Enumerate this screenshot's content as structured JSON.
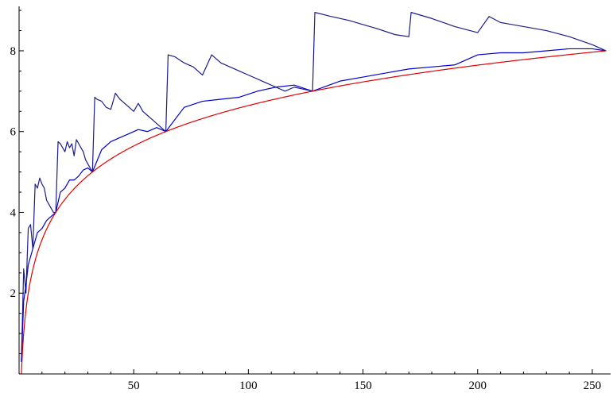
{
  "chart_data": {
    "type": "line",
    "title": "",
    "xlabel": "",
    "ylabel": "",
    "xlim": [
      0,
      258
    ],
    "ylim": [
      0,
      9.1
    ],
    "x_ticks": [
      50,
      100,
      150,
      200,
      250
    ],
    "y_ticks": [
      2,
      4,
      6,
      8
    ],
    "x_tick_labels": [
      "50",
      "100",
      "150",
      "200",
      "250"
    ],
    "y_tick_labels": [
      "2",
      "4",
      "6",
      "8"
    ],
    "grid": false,
    "legend": "none",
    "series": [
      {
        "key": "upper",
        "color": "#1c1c8c",
        "x": [
          1,
          2,
          3,
          4,
          5,
          6,
          7,
          8,
          9,
          10,
          11,
          12,
          13,
          14,
          15,
          16,
          17,
          18,
          19,
          20,
          21,
          22,
          23,
          24,
          25,
          26,
          27,
          28,
          29,
          30,
          31,
          32,
          33,
          34,
          36,
          38,
          40,
          42,
          44,
          46,
          48,
          50,
          52,
          54,
          56,
          58,
          60,
          62,
          64,
          65,
          68,
          72,
          76,
          80,
          84,
          88,
          92,
          96,
          100,
          104,
          108,
          112,
          116,
          120,
          124,
          128,
          129,
          136,
          144,
          150,
          156,
          164,
          170,
          171,
          180,
          190,
          200,
          205,
          210,
          220,
          230,
          240,
          250,
          256
        ],
        "values": [
          0.3,
          2.6,
          2.0,
          3.6,
          3.7,
          3.1,
          4.7,
          4.6,
          4.85,
          4.7,
          4.6,
          4.3,
          4.2,
          4.1,
          4.0,
          4.0,
          5.75,
          5.7,
          5.6,
          5.5,
          5.75,
          5.6,
          5.7,
          5.4,
          5.8,
          5.7,
          5.6,
          5.5,
          5.3,
          5.2,
          5.1,
          5.0,
          6.85,
          6.8,
          6.75,
          6.6,
          6.55,
          6.95,
          6.8,
          6.7,
          6.6,
          6.5,
          6.7,
          6.5,
          6.4,
          6.3,
          6.2,
          6.1,
          6.0,
          7.9,
          7.85,
          7.7,
          7.6,
          7.4,
          7.9,
          7.7,
          7.6,
          7.5,
          7.4,
          7.3,
          7.2,
          7.1,
          7.0,
          7.1,
          7.05,
          7.0,
          8.95,
          8.85,
          8.75,
          8.65,
          8.55,
          8.4,
          8.35,
          8.95,
          8.8,
          8.6,
          8.45,
          8.85,
          8.7,
          8.6,
          8.5,
          8.35,
          8.15,
          8.0
        ]
      },
      {
        "key": "middle",
        "color": "#0000d0",
        "x": [
          1,
          2,
          3,
          4,
          6,
          8,
          10,
          12,
          14,
          16,
          18,
          20,
          22,
          24,
          26,
          28,
          30,
          32,
          36,
          40,
          44,
          48,
          52,
          56,
          60,
          64,
          72,
          80,
          88,
          96,
          104,
          112,
          120,
          128,
          140,
          150,
          160,
          170,
          180,
          190,
          200,
          210,
          220,
          230,
          240,
          250,
          256
        ],
        "values": [
          0.3,
          1.8,
          2.2,
          2.7,
          3.1,
          3.5,
          3.6,
          3.8,
          3.9,
          4.0,
          4.5,
          4.6,
          4.8,
          4.8,
          4.9,
          5.05,
          5.1,
          5.0,
          5.55,
          5.75,
          5.85,
          5.95,
          6.05,
          6.0,
          6.1,
          6.0,
          6.6,
          6.75,
          6.8,
          6.85,
          7.0,
          7.1,
          7.15,
          7.0,
          7.25,
          7.35,
          7.45,
          7.55,
          7.6,
          7.65,
          7.9,
          7.95,
          7.95,
          8.0,
          8.05,
          8.05,
          8.0
        ]
      },
      {
        "key": "log2",
        "color": "#e00000",
        "function": "log2(x)",
        "x_range": [
          1,
          256
        ]
      }
    ]
  }
}
